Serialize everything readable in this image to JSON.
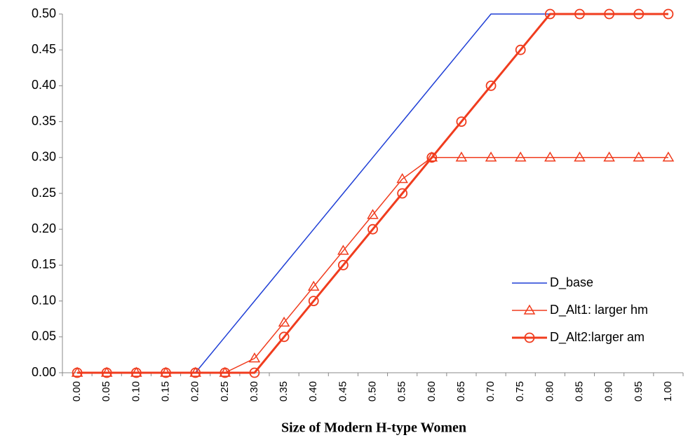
{
  "chart_data": {
    "type": "line",
    "xlabel": "Size of Modern H-type Women",
    "categories": [
      "0.00",
      "0.05",
      "0.10",
      "0.15",
      "0.20",
      "0.25",
      "0.30",
      "0.35",
      "0.40",
      "0.45",
      "0.50",
      "0.55",
      "0.60",
      "0.65",
      "0.70",
      "0.75",
      "0.80",
      "0.85",
      "0.90",
      "0.95",
      "1.00"
    ],
    "ylim": [
      0,
      0.5
    ],
    "yticks": [
      {
        "value": 0,
        "label": "0.00"
      },
      {
        "value": 0.05,
        "label": "0.05"
      },
      {
        "value": 0.1,
        "label": "0.10"
      },
      {
        "value": 0.15,
        "label": "0.15"
      },
      {
        "value": 0.2,
        "label": "0.20"
      },
      {
        "value": 0.25,
        "label": "0.25"
      },
      {
        "value": 0.3,
        "label": "0.30"
      },
      {
        "value": 0.35,
        "label": "0.35"
      },
      {
        "value": 0.4,
        "label": "0.40"
      },
      {
        "value": 0.45,
        "label": "0.45"
      },
      {
        "value": 0.5,
        "label": "0.50"
      }
    ],
    "series": [
      {
        "name": "D_base",
        "color": "#1f3fd6",
        "values": [
          0,
          0,
          0,
          0,
          0,
          0.05,
          0.1,
          0.15,
          0.2,
          0.25,
          0.3,
          0.35,
          0.4,
          0.45,
          0.5,
          0.5,
          0.5,
          0.5,
          0.5,
          0.5,
          0.5
        ]
      },
      {
        "name": "D_Alt1: larger hm",
        "color": "#f03c1e",
        "marker": "triangle",
        "values": [
          0,
          0,
          0,
          0,
          0,
          0,
          0.02,
          0.07,
          0.12,
          0.17,
          0.22,
          0.27,
          0.3,
          0.3,
          0.3,
          0.3,
          0.3,
          0.3,
          0.3,
          0.3,
          0.3
        ]
      },
      {
        "name": "D_Alt2:larger am",
        "color": "#f03c1e",
        "marker": "circle",
        "values": [
          0,
          0,
          0,
          0,
          0,
          0,
          0,
          0.05,
          0.1,
          0.15,
          0.2,
          0.25,
          0.3,
          0.35,
          0.4,
          0.45,
          0.5,
          0.5,
          0.5,
          0.5,
          0.5
        ]
      }
    ]
  }
}
